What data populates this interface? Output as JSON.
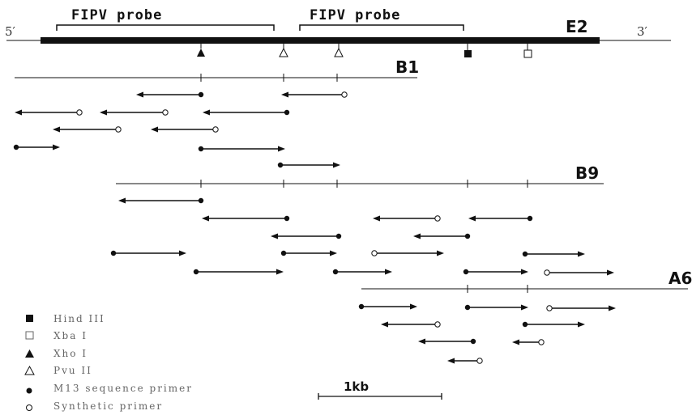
{
  "probes": [
    {
      "label": "FIPV probe"
    },
    {
      "label": "FIPV probe"
    }
  ],
  "genome": {
    "label": "E2",
    "five_prime": "5′",
    "three_prime": "3′"
  },
  "clones": [
    {
      "label": "B1"
    },
    {
      "label": "B9"
    },
    {
      "label": "A6"
    }
  ],
  "legend": [
    {
      "symbol": "filled-square",
      "label": "Hind III"
    },
    {
      "symbol": "open-square",
      "label": "Xba I"
    },
    {
      "symbol": "filled-triangle",
      "label": "Xho I"
    },
    {
      "symbol": "open-triangle",
      "label": "Pvu II"
    },
    {
      "symbol": "filled-circle",
      "label": "M13 sequence primer"
    },
    {
      "symbol": "open-circle",
      "label": "Synthetic primer"
    }
  ],
  "scale": {
    "label": "1kb"
  },
  "colors": {
    "ink": "#111111",
    "legend_ink": "#666666"
  }
}
